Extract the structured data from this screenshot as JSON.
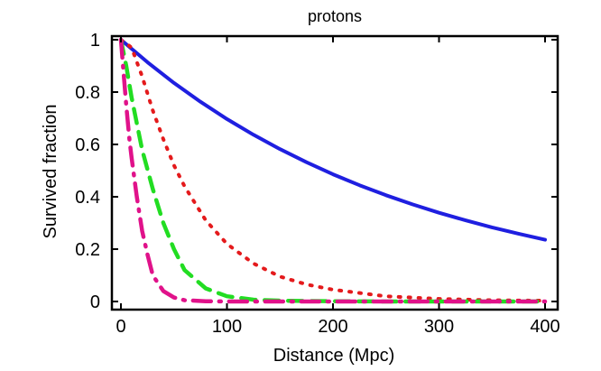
{
  "chart_data": {
    "type": "line",
    "title": "protons",
    "xlabel": "Distance (Mpc)",
    "ylabel": "Survived  fraction",
    "xlim": [
      0,
      400
    ],
    "ylim": [
      0,
      1
    ],
    "xticks": [
      0,
      100,
      200,
      300,
      400
    ],
    "yticks": [
      0,
      0.2,
      0.4,
      0.6,
      0.8,
      1
    ],
    "ytick_labels": [
      "0",
      "0.2",
      "0.4",
      "0.6",
      "0.8",
      "1"
    ],
    "grid": false,
    "legend": "none",
    "series": [
      {
        "color": "#1f1fe0",
        "style": "solid",
        "x": [
          0,
          25,
          50,
          75,
          100,
          125,
          150,
          175,
          200,
          225,
          250,
          275,
          300,
          325,
          350,
          375,
          400
        ],
        "y": [
          1.0,
          0.914,
          0.835,
          0.763,
          0.697,
          0.637,
          0.582,
          0.532,
          0.486,
          0.444,
          0.406,
          0.371,
          0.339,
          0.31,
          0.283,
          0.259,
          0.236
        ]
      },
      {
        "color": "#e41a1c",
        "style": "dotted",
        "x": [
          0,
          10,
          20,
          30,
          40,
          50,
          60,
          80,
          100,
          125,
          150,
          175,
          200,
          250,
          300,
          350,
          400
        ],
        "y": [
          1.0,
          0.97,
          0.86,
          0.73,
          0.62,
          0.52,
          0.44,
          0.31,
          0.22,
          0.145,
          0.095,
          0.065,
          0.045,
          0.02,
          0.01,
          0.005,
          0.003
        ]
      },
      {
        "color": "#22dd22",
        "style": "dashed",
        "x": [
          0,
          5,
          10,
          20,
          30,
          40,
          50,
          60,
          80,
          100,
          125,
          150,
          200,
          250,
          300,
          400
        ],
        "y": [
          1.0,
          0.9,
          0.78,
          0.58,
          0.43,
          0.3,
          0.2,
          0.12,
          0.05,
          0.02,
          0.007,
          0.003,
          0.001,
          0,
          0,
          0
        ]
      },
      {
        "color": "#e0128a",
        "style": "dashdot",
        "x": [
          0,
          3,
          5,
          8,
          10,
          15,
          20,
          25,
          30,
          40,
          50,
          60,
          80,
          100,
          150,
          200,
          300,
          400
        ],
        "y": [
          1.0,
          0.85,
          0.75,
          0.62,
          0.55,
          0.4,
          0.27,
          0.18,
          0.1,
          0.04,
          0.015,
          0.005,
          0.001,
          0,
          0,
          0,
          0,
          0
        ]
      }
    ]
  }
}
